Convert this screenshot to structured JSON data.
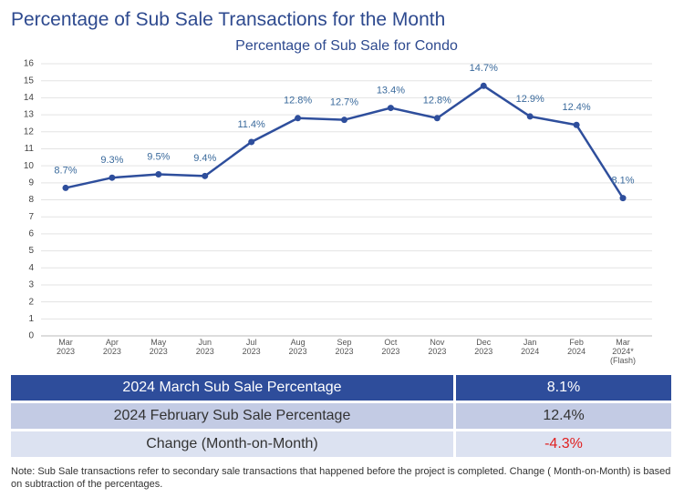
{
  "header": {
    "title": "Percentage of Sub Sale Transactions for the Month"
  },
  "chart_data": {
    "type": "line",
    "title": "Percentage of Sub Sale for Condo",
    "categories": [
      "Mar 2023",
      "Apr 2023",
      "May 2023",
      "Jun 2023",
      "Jul 2023",
      "Aug 2023",
      "Sep 2023",
      "Oct 2023",
      "Nov 2023",
      "Dec 2023",
      "Jan 2024",
      "Feb 2024",
      "Mar 2024* (Flash)"
    ],
    "values": [
      8.7,
      9.3,
      9.5,
      9.4,
      11.4,
      12.8,
      12.7,
      13.4,
      12.8,
      14.7,
      12.9,
      12.4,
      8.1
    ],
    "value_labels": [
      "8.7%",
      "9.3%",
      "9.5%",
      "9.4%",
      "11.4%",
      "12.8%",
      "12.7%",
      "13.4%",
      "12.8%",
      "14.7%",
      "12.9%",
      "12.4%",
      "8.1%"
    ],
    "color": "#2e4e9c",
    "ylim": [
      0,
      16
    ],
    "yticks": [
      0,
      1,
      2,
      3,
      4,
      5,
      6,
      7,
      8,
      9,
      10,
      11,
      12,
      13,
      14,
      15,
      16
    ],
    "grid": true
  },
  "table": {
    "rows": [
      [
        "2024 March Sub Sale Percentage",
        "8.1%"
      ],
      [
        "2024 February Sub Sale Percentage",
        "12.4%"
      ],
      [
        "Change (Month-on-Month)",
        "-4.3%"
      ]
    ]
  },
  "note": "Note: Sub Sale transactions refer to secondary sale transactions that happened before the project is completed. Change ( Month-on-Month) is based on subtraction of the percentages."
}
